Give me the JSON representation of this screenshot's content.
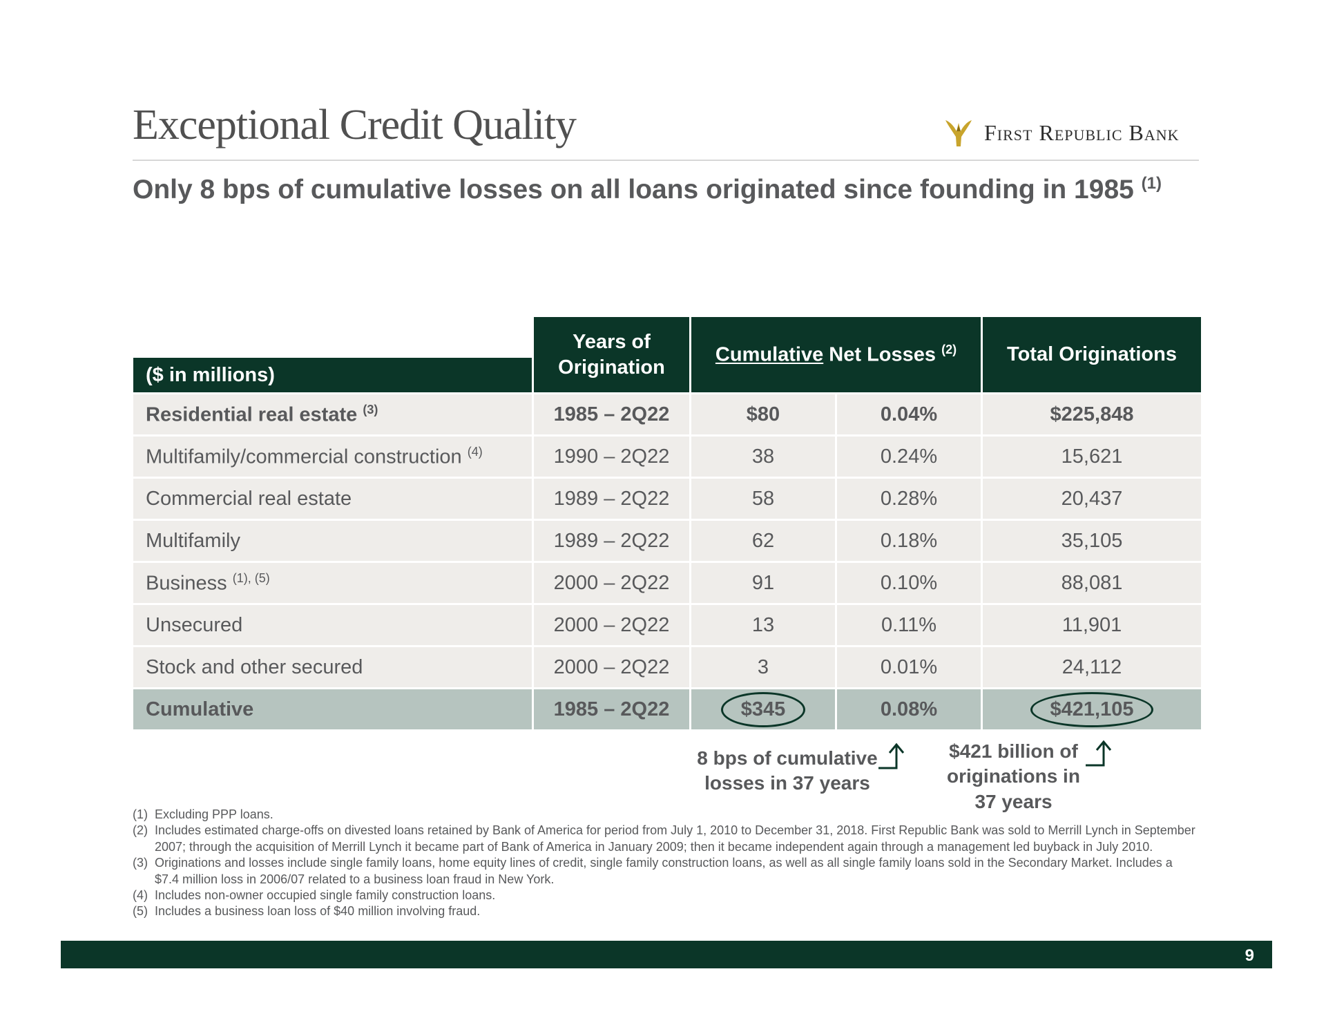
{
  "title": "Exceptional Credit Quality",
  "logo": {
    "icon": "eagle-icon",
    "text": "First Republic Bank",
    "color": "#c8a42c"
  },
  "subtitle": {
    "text": "Only 8 bps of cumulative losses on all loans originated since founding in 1985",
    "note": "(1)"
  },
  "table": {
    "label_header": "($ in millions)",
    "years_header_line1": "Years of",
    "years_header_line2": "Origination",
    "losses_header_underlined": "Cumulative",
    "losses_header_rest": " Net Losses",
    "losses_header_note": "(2)",
    "originations_header": "Total Originations",
    "rows": [
      {
        "label": "Residential real estate",
        "note": "(3)",
        "years": "1985 – 2Q22",
        "losses": "$80",
        "pct": "0.04%",
        "originations": "$225,848"
      },
      {
        "label": "Multifamily/commercial construction",
        "note": "(4)",
        "years": "1990 – 2Q22",
        "losses": "38",
        "pct": "0.24%",
        "originations": "15,621"
      },
      {
        "label": "Commercial real estate",
        "note": "",
        "years": "1989 – 2Q22",
        "losses": "58",
        "pct": "0.28%",
        "originations": "20,437"
      },
      {
        "label": "Multifamily",
        "note": "",
        "years": "1989 – 2Q22",
        "losses": "62",
        "pct": "0.18%",
        "originations": "35,105"
      },
      {
        "label": "Business",
        "note": "(1), (5)",
        "years": "2000 – 2Q22",
        "losses": "91",
        "pct": "0.10%",
        "originations": "88,081"
      },
      {
        "label": "Unsecured",
        "note": "",
        "years": "2000 – 2Q22",
        "losses": "13",
        "pct": "0.11%",
        "originations": "11,901"
      },
      {
        "label": "Stock and other secured",
        "note": "",
        "years": "2000 – 2Q22",
        "losses": "3",
        "pct": "0.01%",
        "originations": "24,112"
      }
    ],
    "total": {
      "label": "Cumulative",
      "years": "1985 – 2Q22",
      "losses": "$345",
      "pct": "0.08%",
      "originations": "$421,105"
    }
  },
  "callouts": {
    "losses_line1": "8 bps of cumulative",
    "losses_line2": "losses in 37 years",
    "orig_line1": "$421 billion of",
    "orig_line2": "originations in",
    "orig_line3": "37 years"
  },
  "footnotes": [
    {
      "num": "(1)",
      "text": "Excluding PPP loans."
    },
    {
      "num": "(2)",
      "text": "Includes estimated charge-offs on divested loans retained by Bank of America for period from July 1, 2010 to December 31, 2018. First Republic Bank was sold to Merrill Lynch in September 2007; through the acquisition of Merrill Lynch it became part of Bank of America in January 2009; then it became independent again through a management led buyback in July 2010."
    },
    {
      "num": "(3)",
      "text": "Originations and losses include single family loans, home equity lines of credit, single family construction loans, as well as all single family loans sold in the Secondary Market. Includes a $7.4 million loss in 2006/07 related to a business loan fraud in New York."
    },
    {
      "num": "(4)",
      "text": "Includes non-owner occupied single family construction loans."
    },
    {
      "num": "(5)",
      "text": "Includes a business loan loss of $40 million involving fraud."
    }
  ],
  "page_number": "9",
  "colors": {
    "dark_green": "#0b3628",
    "row_bg": "#efedea",
    "total_bg": "#b6c4bf",
    "text": "#58595b"
  }
}
